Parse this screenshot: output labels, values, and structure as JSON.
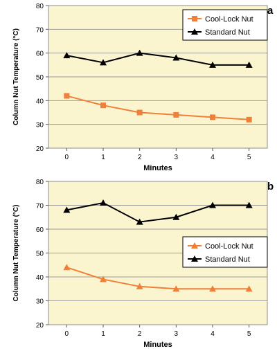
{
  "chart_data": [
    {
      "type": "line",
      "panel_label": "a",
      "xlabel": "Minutes",
      "ylabel": "Column Nut Temperature (°C)",
      "x": [
        0,
        1,
        2,
        3,
        4,
        5
      ],
      "ylim": [
        20,
        80
      ],
      "yticks": [
        20,
        30,
        40,
        50,
        60,
        70,
        80
      ],
      "grid": true,
      "legend_position": "top-right",
      "plot_background": "#fbf5cf",
      "series": [
        {
          "name": "Cool-Lock Nut",
          "marker": "square",
          "color": "#f07f3a",
          "values": [
            42,
            38,
            35,
            34,
            33,
            32
          ]
        },
        {
          "name": "Standard Nut",
          "marker": "triangle",
          "color": "#000000",
          "values": [
            59,
            56,
            60,
            58,
            55,
            55
          ]
        }
      ]
    },
    {
      "type": "line",
      "panel_label": "b",
      "xlabel": "Minutes",
      "ylabel": "Column Nut Temperature (°C)",
      "x": [
        0,
        1,
        2,
        3,
        4,
        5
      ],
      "ylim": [
        20,
        80
      ],
      "yticks": [
        20,
        30,
        40,
        50,
        60,
        70,
        80
      ],
      "grid": true,
      "legend_position": "right",
      "plot_background": "#fbf5cf",
      "series": [
        {
          "name": "Cool-Lock Nut",
          "marker": "triangle",
          "color": "#f07f3a",
          "values": [
            44,
            39,
            36,
            35,
            35,
            35
          ]
        },
        {
          "name": "Standard Nut",
          "marker": "triangle",
          "color": "#000000",
          "values": [
            68,
            71,
            63,
            65,
            70,
            70
          ]
        }
      ]
    }
  ]
}
